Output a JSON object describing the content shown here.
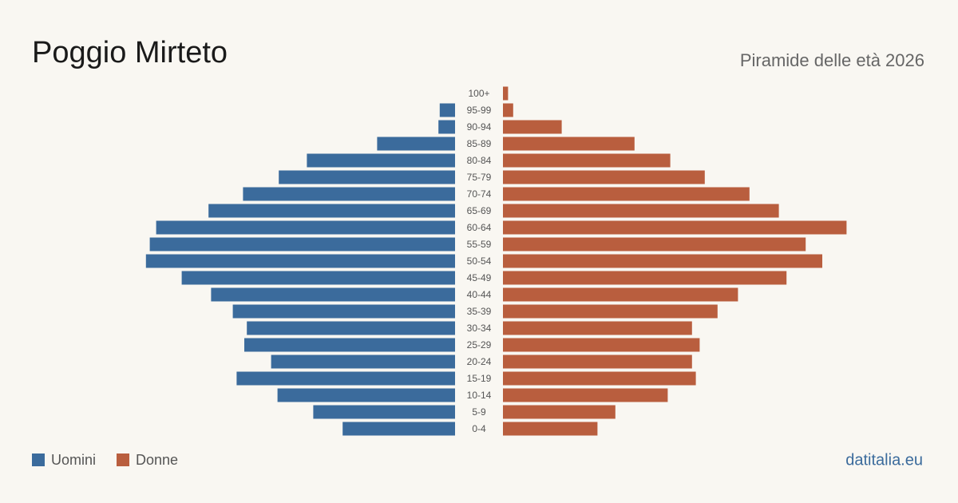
{
  "chart_data": {
    "type": "pyramid",
    "title": "Poggio Mirteto",
    "subtitle": "Piramide delle età 2026",
    "source": "datitalia.eu",
    "categories": [
      "100+",
      "95-99",
      "90-94",
      "85-89",
      "80-84",
      "75-79",
      "70-74",
      "65-69",
      "60-64",
      "55-59",
      "50-54",
      "45-49",
      "40-44",
      "35-39",
      "30-34",
      "25-29",
      "20-24",
      "15-19",
      "10-14",
      "5-9",
      "0-4"
    ],
    "series": [
      {
        "name": "Uomini",
        "color": "#3b6b9c",
        "values": [
          0,
          12,
          13,
          61,
          116,
          138,
          166,
          193,
          234,
          239,
          242,
          214,
          191,
          174,
          163,
          165,
          144,
          171,
          139,
          111,
          88
        ]
      },
      {
        "name": "Donne",
        "color": "#b95e3e",
        "values": [
          4,
          8,
          46,
          103,
          131,
          158,
          193,
          216,
          269,
          237,
          250,
          222,
          184,
          168,
          148,
          154,
          148,
          151,
          129,
          88,
          74
        ]
      }
    ],
    "xlim": [
      0,
      270
    ]
  }
}
